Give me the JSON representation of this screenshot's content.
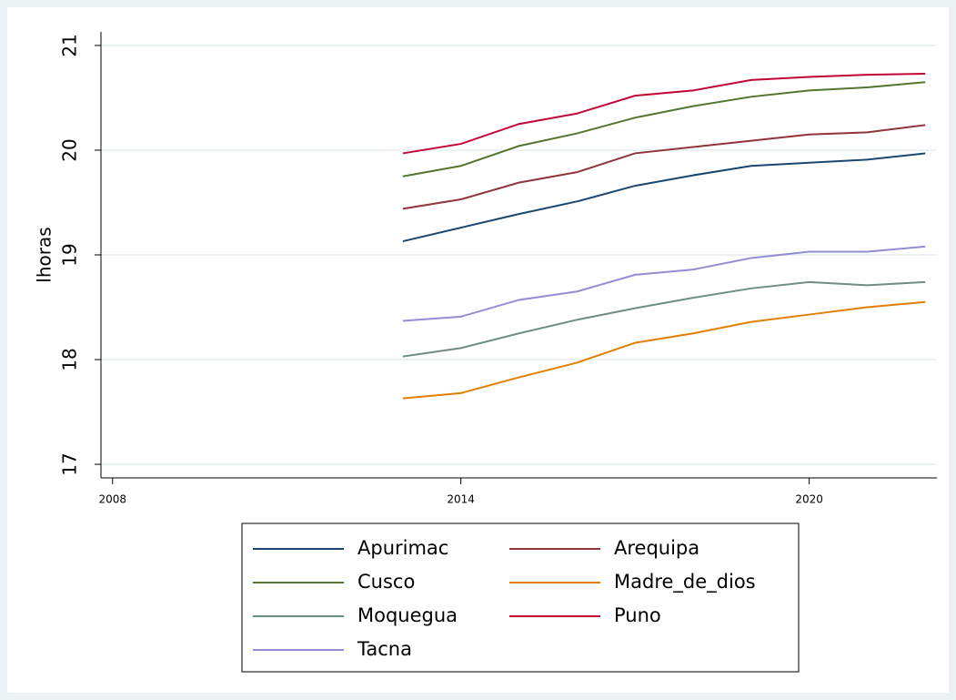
{
  "chart_data": {
    "type": "line",
    "y_label": "lhoras",
    "x": [
      2013,
      2014,
      2015,
      2016,
      2017,
      2018,
      2019,
      2020,
      2021,
      2022
    ],
    "xlim": [
      2007.8,
      2022.2
    ],
    "xticks": [
      2008,
      2014,
      2020
    ],
    "ylim": [
      16.87,
      21.13
    ],
    "yticks": [
      17,
      18,
      19,
      20,
      21
    ],
    "grid": true,
    "series": [
      {
        "name": "Apurimac",
        "color": "#1a476f",
        "values": [
          19.13,
          19.26,
          19.39,
          19.51,
          19.66,
          19.76,
          19.85,
          19.88,
          19.91,
          19.97
        ]
      },
      {
        "name": "Arequipa",
        "color": "#90353b",
        "values": [
          19.44,
          19.53,
          19.69,
          19.79,
          19.97,
          20.03,
          20.09,
          20.15,
          20.17,
          20.24
        ]
      },
      {
        "name": "Cusco",
        "color": "#55752f",
        "values": [
          19.75,
          19.85,
          20.04,
          20.16,
          20.31,
          20.42,
          20.51,
          20.57,
          20.6,
          20.65
        ]
      },
      {
        "name": "Madre_de_dios",
        "color": "#e37e00",
        "values": [
          17.63,
          17.68,
          17.83,
          17.97,
          18.16,
          18.25,
          18.36,
          18.43,
          18.5,
          18.55
        ]
      },
      {
        "name": "Moquegua",
        "color": "#6e8e84",
        "values": [
          18.03,
          18.11,
          18.25,
          18.38,
          18.49,
          18.59,
          18.68,
          18.74,
          18.71,
          18.74
        ]
      },
      {
        "name": "Puno",
        "color": "#c10534",
        "values": [
          19.97,
          20.06,
          20.25,
          20.35,
          20.52,
          20.57,
          20.67,
          20.7,
          20.72,
          20.73
        ]
      },
      {
        "name": "Tacna",
        "color": "#938dd2",
        "values": [
          18.37,
          18.41,
          18.57,
          18.65,
          18.81,
          18.86,
          18.97,
          19.03,
          19.03,
          19.08
        ]
      }
    ]
  }
}
